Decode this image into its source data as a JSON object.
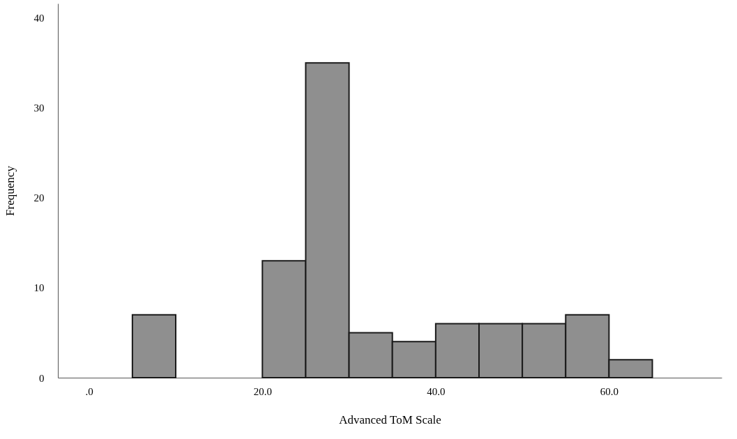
{
  "chart_data": {
    "type": "histogram",
    "xlabel": "Advanced ToM Scale",
    "ylabel": "Frequency",
    "bins": [
      5,
      10,
      15,
      20,
      25,
      30,
      35,
      40,
      45,
      50,
      55,
      60,
      65
    ],
    "values": [
      7,
      0,
      0,
      13,
      35,
      5,
      4,
      6,
      6,
      6,
      7,
      2
    ],
    "color": "#8f8f8f",
    "xlim": [
      -3.6,
      73
    ],
    "xticks": [
      {
        "value": 0,
        "label": ".0"
      },
      {
        "value": 20,
        "label": "20.0"
      },
      {
        "value": 40,
        "label": "40.0"
      },
      {
        "value": 60,
        "label": "60.0"
      }
    ],
    "ylim": [
      0,
      41.6
    ],
    "yticks": [
      0,
      10,
      20,
      30,
      40
    ],
    "grid": false
  }
}
